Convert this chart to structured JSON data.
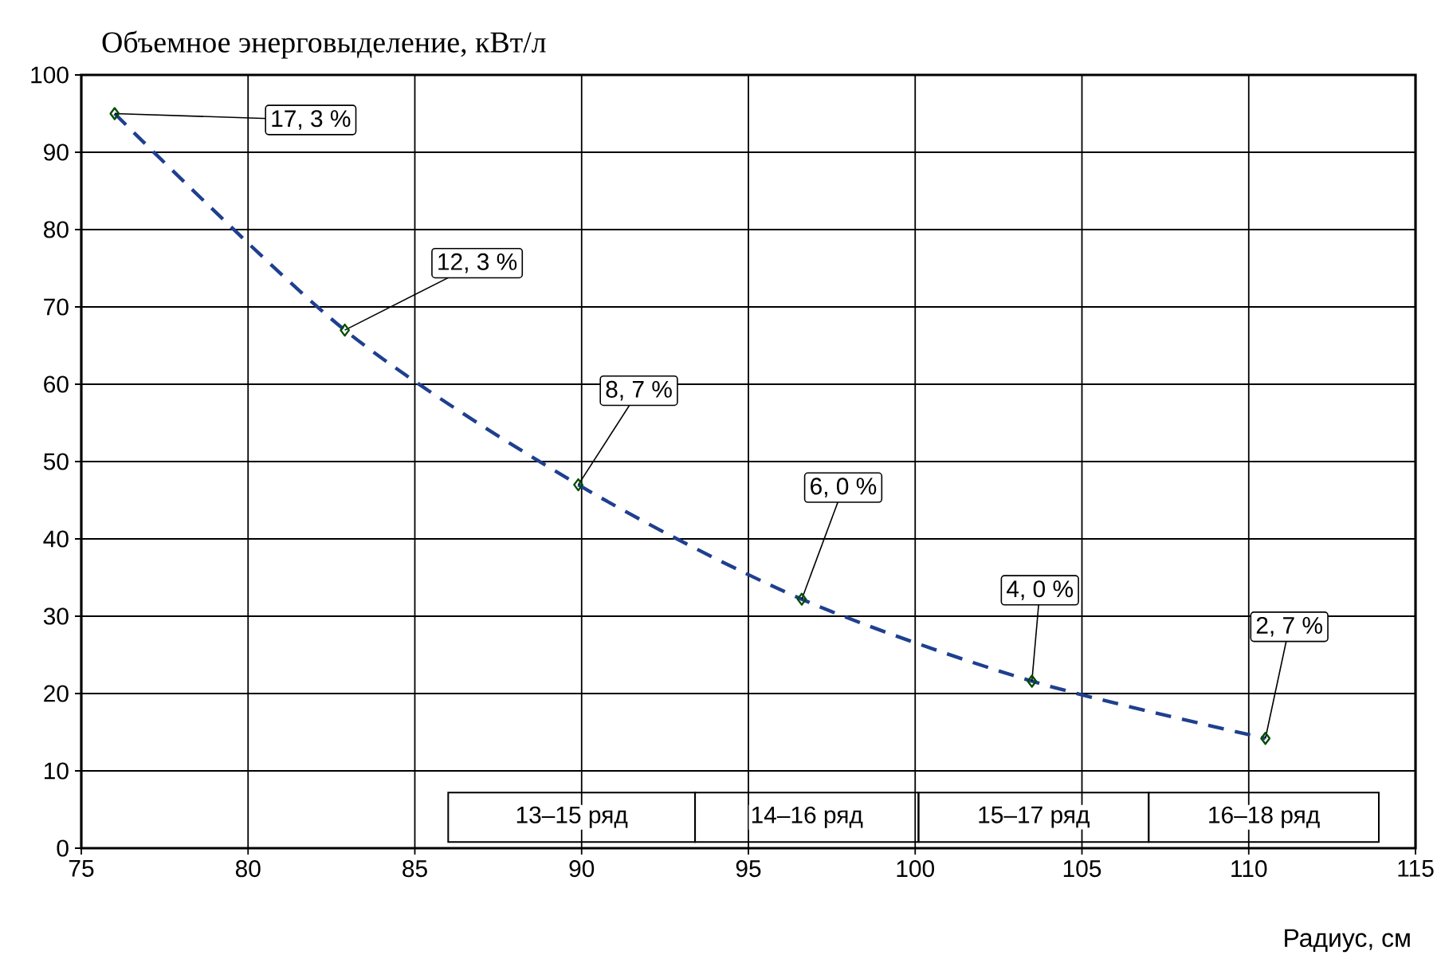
{
  "chart_data": {
    "type": "line",
    "title": "Объемное энерговыделение, кВт/л",
    "xlabel": "Радиус, см",
    "x": [
      76.0,
      82.9,
      89.9,
      96.6,
      103.5,
      110.5
    ],
    "series": [
      {
        "color": "#1f3f8f",
        "values": [
          95,
          67,
          47,
          32.2,
          21.6,
          14.2
        ],
        "marker": "diamond",
        "line_style": "dashed"
      }
    ],
    "xlim": [
      75,
      115
    ],
    "xticks": [
      75,
      80,
      85,
      90,
      95,
      100,
      105,
      110,
      115
    ],
    "ylim": [
      0,
      100
    ],
    "yticks": [
      0,
      10,
      20,
      30,
      40,
      50,
      60,
      70,
      80,
      90,
      100
    ],
    "grid": true,
    "annotations": [
      {
        "text": "17, 3 %",
        "x": 76.0,
        "y": 95
      },
      {
        "text": "12, 3 %",
        "x": 82.9,
        "y": 67
      },
      {
        "text": "8, 7 %",
        "x": 89.9,
        "y": 47
      },
      {
        "text": "6, 0 %",
        "x": 96.6,
        "y": 32.2
      },
      {
        "text": "4, 0 %",
        "x": 103.5,
        "y": 21.6
      },
      {
        "text": "2, 7 %",
        "x": 110.5,
        "y": 14.2
      },
      "13–15 ряд",
      "14–16 ряд",
      "15–17 ряд",
      "16–18 ряд"
    ]
  }
}
